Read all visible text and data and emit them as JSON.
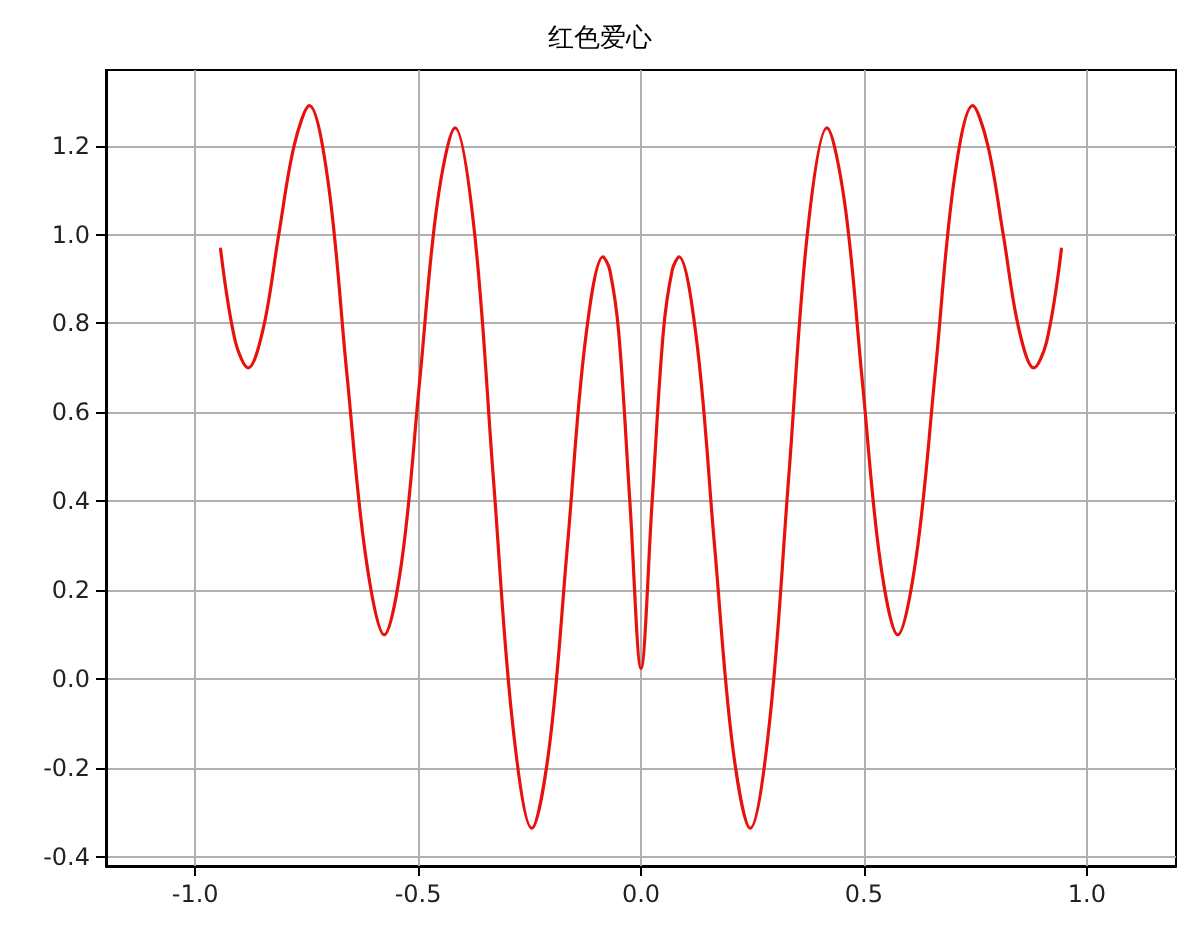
{
  "chart_data": {
    "type": "line",
    "title": "红色爱心",
    "x": [
      -0.943,
      -0.91,
      -0.881,
      -0.847,
      -0.8125,
      -0.778,
      -0.744,
      -0.702,
      -0.66,
      -0.618,
      -0.576,
      -0.536,
      -0.4965,
      -0.457,
      -0.417,
      -0.374,
      -0.331,
      -0.288,
      -0.245,
      -0.205,
      -0.165,
      -0.125,
      -0.085,
      -0.07,
      -0.05,
      -0.025,
      0,
      0.025,
      0.05,
      0.07,
      0.085,
      0.125,
      0.165,
      0.205,
      0.245,
      0.288,
      0.331,
      0.374,
      0.417,
      0.457,
      0.4965,
      0.536,
      0.576,
      0.618,
      0.66,
      0.702,
      0.744,
      0.778,
      0.8125,
      0.847,
      0.881,
      0.91,
      0.943
    ],
    "series": [
      {
        "color": "#e8120c",
        "values": [
          0.967,
          0.76,
          0.7,
          0.79,
          1.0,
          1.2,
          1.29,
          1.12,
          0.69,
          0.28,
          0.1,
          0.27,
          0.67,
          1.07,
          1.24,
          1.01,
          0.45,
          -0.1,
          -0.335,
          -0.147,
          0.3,
          0.76,
          0.95,
          0.92,
          0.78,
          0.4,
          0.024,
          0.4,
          0.78,
          0.92,
          0.95,
          0.76,
          0.3,
          -0.147,
          -0.335,
          -0.1,
          0.45,
          1.01,
          1.24,
          1.07,
          0.67,
          0.27,
          0.1,
          0.28,
          0.69,
          1.12,
          1.29,
          1.2,
          1.0,
          0.79,
          0.7,
          0.76,
          0.967
        ]
      }
    ],
    "xlim": [
      -1.2,
      1.2
    ],
    "ylim": [
      -0.42,
      1.37
    ],
    "xticks": [
      {
        "value": -1,
        "label": "-1.0"
      },
      -0.5,
      {
        "value": 0,
        "label": "0.0"
      },
      0.5,
      {
        "value": 1,
        "label": "1.0"
      }
    ],
    "yticks": [
      -0.4,
      -0.2,
      {
        "value": 0,
        "label": "0.0"
      },
      0.2,
      0.4,
      0.6,
      0.8,
      {
        "value": 1,
        "label": "1.0"
      },
      1.2
    ],
    "grid": true,
    "marker": "none",
    "line_style": "solid"
  }
}
